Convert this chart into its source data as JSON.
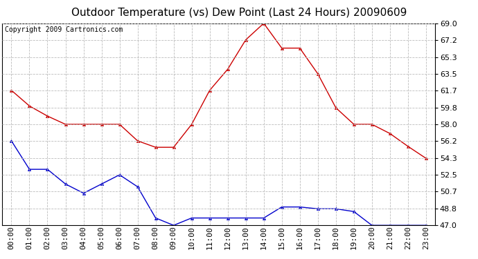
{
  "title": "Outdoor Temperature (vs) Dew Point (Last 24 Hours) 20090609",
  "copyright": "Copyright 2009 Cartronics.com",
  "x_labels": [
    "00:00",
    "01:00",
    "02:00",
    "03:00",
    "04:00",
    "05:00",
    "06:00",
    "07:00",
    "08:00",
    "09:00",
    "10:00",
    "11:00",
    "12:00",
    "13:00",
    "14:00",
    "15:00",
    "16:00",
    "17:00",
    "18:00",
    "19:00",
    "20:00",
    "21:00",
    "22:00",
    "23:00"
  ],
  "temp_data": [
    61.7,
    60.0,
    58.9,
    58.0,
    58.0,
    58.0,
    58.0,
    56.2,
    55.5,
    55.5,
    58.0,
    61.7,
    64.0,
    67.2,
    69.0,
    66.3,
    66.3,
    63.5,
    59.8,
    58.0,
    58.0,
    57.0,
    55.6,
    54.3
  ],
  "dew_data": [
    56.2,
    53.1,
    53.1,
    51.5,
    50.5,
    51.5,
    52.5,
    51.2,
    47.8,
    47.0,
    47.8,
    47.8,
    47.8,
    47.8,
    47.8,
    49.0,
    49.0,
    48.8,
    48.8,
    48.5,
    47.0,
    47.0,
    47.0,
    47.0
  ],
  "temp_color": "#cc0000",
  "dew_color": "#0000cc",
  "bg_color": "#ffffff",
  "grid_color": "#bbbbbb",
  "ylim": [
    47.0,
    69.0
  ],
  "yticks": [
    47.0,
    48.8,
    50.7,
    52.5,
    54.3,
    56.2,
    58.0,
    59.8,
    61.7,
    63.5,
    65.3,
    67.2,
    69.0
  ],
  "title_fontsize": 11,
  "copyright_fontsize": 7,
  "tick_fontsize": 8,
  "marker_size": 3
}
